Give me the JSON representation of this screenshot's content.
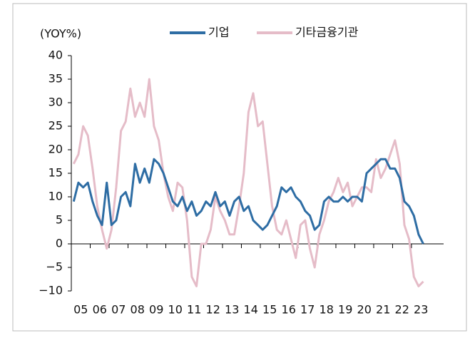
{
  "chart_data": {
    "type": "line",
    "ylabel": "(YOY%)",
    "x": [
      2005.125,
      2005.375,
      2005.625,
      2005.875,
      2006.125,
      2006.375,
      2006.625,
      2006.875,
      2007.125,
      2007.375,
      2007.625,
      2007.875,
      2008.125,
      2008.375,
      2008.625,
      2008.875,
      2009.125,
      2009.375,
      2009.625,
      2009.875,
      2010.125,
      2010.375,
      2010.625,
      2010.875,
      2011.125,
      2011.375,
      2011.625,
      2011.875,
      2012.125,
      2012.375,
      2012.625,
      2012.875,
      2013.125,
      2013.375,
      2013.625,
      2013.875,
      2014.125,
      2014.375,
      2014.625,
      2014.875,
      2015.125,
      2015.375,
      2015.625,
      2015.875,
      2016.125,
      2016.375,
      2016.625,
      2016.875,
      2017.125,
      2017.375,
      2017.625,
      2017.875,
      2018.125,
      2018.375,
      2018.625,
      2018.875,
      2019.125,
      2019.375,
      2019.625,
      2019.875,
      2020.125,
      2020.375,
      2020.625,
      2020.875,
      2021.125,
      2021.375,
      2021.625,
      2021.875,
      2022.125,
      2022.375,
      2022.625,
      2022.875,
      2023.125,
      2023.375,
      2023.625
    ],
    "series": [
      {
        "name": "기업",
        "color": "#2e6da4",
        "values": [
          9,
          13,
          12,
          13,
          9,
          6,
          4,
          13,
          4,
          5,
          10,
          11,
          8,
          17,
          13,
          16,
          13,
          18,
          17,
          15,
          12,
          9,
          8,
          10,
          7,
          9,
          6,
          7,
          9,
          8,
          11,
          8,
          9,
          6,
          9,
          10,
          7,
          8,
          5,
          4,
          3,
          4,
          6,
          8,
          12,
          11,
          12,
          10,
          9,
          7,
          6,
          3,
          4,
          9,
          10,
          9,
          9,
          10,
          9,
          10,
          10,
          9,
          15,
          16,
          17,
          18,
          18,
          16,
          16,
          14,
          9,
          8,
          6,
          2,
          0
        ]
      },
      {
        "name": "기타금융기관",
        "color": "#e5bcc8",
        "values": [
          17,
          19,
          25,
          23,
          16,
          8,
          3,
          -1,
          3,
          12,
          24,
          26,
          33,
          27,
          30,
          27,
          35,
          25,
          22,
          15,
          10,
          7,
          13,
          12,
          5,
          -7,
          -9,
          0,
          0,
          3,
          10,
          7,
          5,
          2,
          2,
          8,
          15,
          28,
          32,
          25,
          26,
          17,
          8,
          3,
          2,
          5,
          1,
          -3,
          4,
          5,
          -1,
          -5,
          2,
          5,
          9,
          11,
          14,
          11,
          13,
          8,
          10,
          12,
          12,
          11,
          18,
          14,
          16,
          19,
          22,
          17,
          4,
          1,
          -7,
          -9,
          -8
        ]
      }
    ],
    "xlim": [
      2005,
      2024.7
    ],
    "xticks": [
      {
        "value": 2005,
        "label": "05"
      },
      {
        "value": 2006,
        "label": "06"
      },
      {
        "value": 2007,
        "label": "07"
      },
      {
        "value": 2008,
        "label": "08"
      },
      {
        "value": 2009,
        "label": "09"
      },
      {
        "value": 2010,
        "label": "10"
      },
      {
        "value": 2011,
        "label": "11"
      },
      {
        "value": 2012,
        "label": "12"
      },
      {
        "value": 2013,
        "label": "13"
      },
      {
        "value": 2014,
        "label": "14"
      },
      {
        "value": 2015,
        "label": "15"
      },
      {
        "value": 2016,
        "label": "16"
      },
      {
        "value": 2017,
        "label": "17"
      },
      {
        "value": 2018,
        "label": "18"
      },
      {
        "value": 2019,
        "label": "19"
      },
      {
        "value": 2020,
        "label": "20"
      },
      {
        "value": 2021,
        "label": "21"
      },
      {
        "value": 2022,
        "label": "22"
      },
      {
        "value": 2023,
        "label": "23"
      }
    ],
    "ylim": [
      -10,
      40
    ],
    "yticks": [
      {
        "value": -10,
        "label": "−10"
      },
      {
        "value": -5,
        "label": "−5"
      },
      0,
      5,
      10,
      15,
      20,
      25,
      30,
      35,
      40
    ],
    "grid": false
  }
}
